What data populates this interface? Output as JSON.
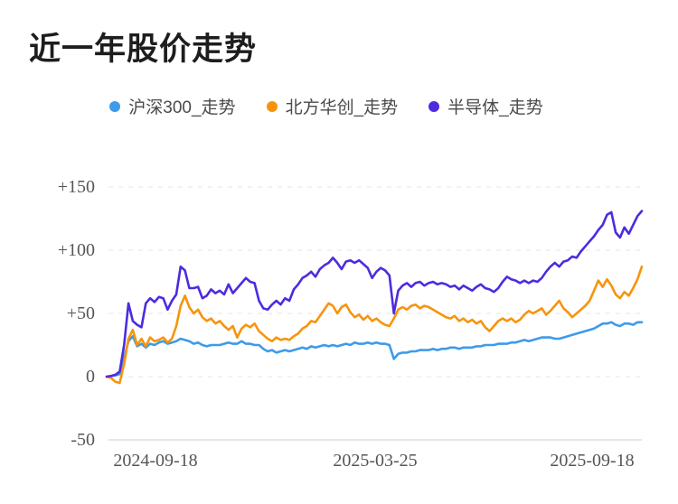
{
  "title": "近一年股价走势",
  "chart_data": {
    "type": "line",
    "title": "近一年股价走势",
    "legend_position": "top-center",
    "grid": "horizontal-dashed",
    "x_axis": {
      "range": [
        "2024-09-18",
        "2025-09-18"
      ],
      "tick_labels": [
        "2024-09-18",
        "2025-03-25",
        "2025-09-18"
      ]
    },
    "y_axis": {
      "min": -50,
      "max": 150,
      "tick_labels": [
        "+150",
        "+100",
        "+50",
        "0",
        "-50"
      ]
    },
    "series": [
      {
        "key": "hs300",
        "name": "沪深300_走势",
        "color": "#3d9be9",
        "values": [
          0,
          0.5,
          1,
          2,
          15,
          28,
          32,
          24,
          26,
          23,
          26,
          25,
          27,
          28,
          26,
          27,
          28,
          30,
          29,
          28,
          26,
          27,
          25,
          24,
          25,
          25,
          25,
          26,
          27,
          26,
          26,
          28,
          26,
          26,
          25,
          25,
          22,
          20,
          21,
          19,
          20,
          21,
          20,
          21,
          22,
          23,
          22,
          24,
          23,
          24,
          25,
          24,
          25,
          24,
          25,
          26,
          25,
          27,
          26,
          26,
          27,
          26,
          27,
          26,
          26,
          25,
          14,
          18,
          19,
          19,
          20,
          20,
          21,
          21,
          21,
          22,
          21,
          22,
          22,
          23,
          23,
          22,
          23,
          23,
          23,
          24,
          24,
          25,
          25,
          25,
          26,
          26,
          26,
          27,
          27,
          28,
          29,
          28,
          29,
          30,
          31,
          31,
          31,
          30,
          30,
          31,
          32,
          33,
          34,
          35,
          36,
          37,
          38,
          40,
          42,
          42,
          43,
          41,
          40,
          42,
          42,
          41,
          43,
          43
        ]
      },
      {
        "key": "naura",
        "name": "北方华创_走势",
        "color": "#f7940d",
        "values": [
          0,
          -1,
          -4,
          -5,
          10,
          30,
          37,
          25,
          30,
          24,
          31,
          28,
          29,
          31,
          27,
          30,
          40,
          56,
          64,
          55,
          50,
          53,
          47,
          44,
          46,
          42,
          44,
          40,
          37,
          40,
          31,
          38,
          41,
          39,
          42,
          36,
          33,
          30,
          28,
          31,
          29,
          30,
          29,
          32,
          34,
          38,
          40,
          44,
          43,
          48,
          53,
          58,
          56,
          50,
          55,
          57,
          51,
          47,
          49,
          45,
          48,
          44,
          46,
          43,
          41,
          40,
          46,
          53,
          55,
          53,
          56,
          57,
          54,
          56,
          55,
          53,
          51,
          49,
          47,
          46,
          48,
          44,
          46,
          43,
          45,
          42,
          44,
          39,
          36,
          40,
          44,
          46,
          44,
          46,
          43,
          45,
          49,
          52,
          50,
          52,
          54,
          49,
          52,
          56,
          60,
          54,
          51,
          47,
          50,
          53,
          56,
          60,
          68,
          76,
          71,
          77,
          72,
          65,
          62,
          67,
          64,
          70,
          77,
          87
        ]
      },
      {
        "key": "semiconductor",
        "name": "半导体_走势",
        "color": "#4e2bdf",
        "values": [
          0,
          0.5,
          1.5,
          4,
          25,
          58,
          44,
          41,
          39,
          58,
          62,
          59,
          63,
          62,
          53,
          60,
          65,
          87,
          84,
          70,
          70,
          71,
          62,
          64,
          69,
          66,
          68,
          65,
          73,
          66,
          70,
          74,
          78,
          75,
          74,
          60,
          54,
          53,
          57,
          60,
          57,
          62,
          60,
          69,
          73,
          78,
          80,
          83,
          79,
          85,
          88,
          90,
          94,
          90,
          85,
          91,
          92,
          90,
          92,
          89,
          86,
          78,
          83,
          86,
          84,
          80,
          50,
          68,
          72,
          74,
          71,
          74,
          75,
          72,
          74,
          75,
          73,
          74,
          73,
          71,
          72,
          69,
          72,
          70,
          68,
          71,
          73,
          70,
          69,
          67,
          70,
          75,
          79,
          77,
          76,
          74,
          76,
          74,
          76,
          75,
          78,
          83,
          87,
          90,
          87,
          91,
          92,
          95,
          94,
          99,
          103,
          107,
          111,
          116,
          120,
          128,
          130,
          114,
          110,
          118,
          113,
          120,
          127,
          131
        ]
      }
    ]
  }
}
